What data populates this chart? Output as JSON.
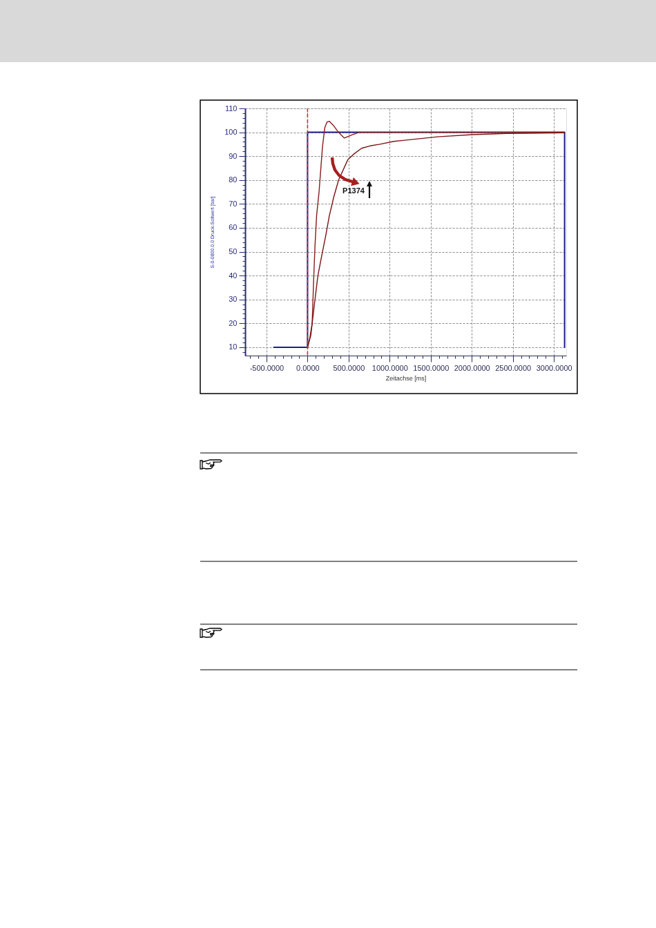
{
  "chart_data": {
    "type": "line",
    "xlabel": "Zeitachse [ms]",
    "ylabel": "S-0-0800.0.0 Druck-Sollwert [bar]",
    "xlim": [
      -760,
      3150
    ],
    "ylim": [
      6.5,
      110
    ],
    "xticks": [
      {
        "value": -700,
        "label": null
      },
      {
        "value": -600,
        "label": null
      },
      {
        "value": -500,
        "label": "-500.0000"
      },
      {
        "value": -400,
        "label": null
      },
      {
        "value": -300,
        "label": null
      },
      {
        "value": -200,
        "label": null
      },
      {
        "value": -100,
        "label": null
      },
      {
        "value": 0,
        "label": "0.0000"
      },
      {
        "value": 100,
        "label": null
      },
      {
        "value": 200,
        "label": null
      },
      {
        "value": 300,
        "label": null
      },
      {
        "value": 400,
        "label": null
      },
      {
        "value": 500,
        "label": "500.0000"
      },
      {
        "value": 600,
        "label": null
      },
      {
        "value": 700,
        "label": null
      },
      {
        "value": 800,
        "label": null
      },
      {
        "value": 900,
        "label": null
      },
      {
        "value": 1000,
        "label": "1000.0000"
      },
      {
        "value": 1100,
        "label": null
      },
      {
        "value": 1200,
        "label": null
      },
      {
        "value": 1300,
        "label": null
      },
      {
        "value": 1400,
        "label": null
      },
      {
        "value": 1500,
        "label": "1500.0000"
      },
      {
        "value": 1600,
        "label": null
      },
      {
        "value": 1700,
        "label": null
      },
      {
        "value": 1800,
        "label": null
      },
      {
        "value": 1900,
        "label": null
      },
      {
        "value": 2000,
        "label": "2000.0000"
      },
      {
        "value": 2100,
        "label": null
      },
      {
        "value": 2200,
        "label": null
      },
      {
        "value": 2300,
        "label": null
      },
      {
        "value": 2400,
        "label": null
      },
      {
        "value": 2500,
        "label": "2500.0000"
      },
      {
        "value": 2600,
        "label": null
      },
      {
        "value": 2700,
        "label": null
      },
      {
        "value": 2800,
        "label": null
      },
      {
        "value": 2900,
        "label": null
      },
      {
        "value": 3000,
        "label": "3000.0000"
      },
      {
        "value": 3100,
        "label": null
      }
    ],
    "yticks": [
      {
        "value": 8,
        "label": null
      },
      10,
      {
        "value": 12,
        "label": null
      },
      {
        "value": 14,
        "label": null
      },
      {
        "value": 16,
        "label": null
      },
      {
        "value": 18,
        "label": null
      },
      20,
      {
        "value": 22,
        "label": null
      },
      {
        "value": 24,
        "label": null
      },
      {
        "value": 26,
        "label": null
      },
      {
        "value": 28,
        "label": null
      },
      30,
      {
        "value": 32,
        "label": null
      },
      {
        "value": 34,
        "label": null
      },
      {
        "value": 36,
        "label": null
      },
      {
        "value": 38,
        "label": null
      },
      40,
      {
        "value": 42,
        "label": null
      },
      {
        "value": 44,
        "label": null
      },
      {
        "value": 46,
        "label": null
      },
      {
        "value": 48,
        "label": null
      },
      50,
      {
        "value": 52,
        "label": null
      },
      {
        "value": 54,
        "label": null
      },
      {
        "value": 56,
        "label": null
      },
      {
        "value": 58,
        "label": null
      },
      60,
      {
        "value": 62,
        "label": null
      },
      {
        "value": 64,
        "label": null
      },
      {
        "value": 66,
        "label": null
      },
      {
        "value": 68,
        "label": null
      },
      70,
      {
        "value": 72,
        "label": null
      },
      {
        "value": 74,
        "label": null
      },
      {
        "value": 76,
        "label": null
      },
      {
        "value": 78,
        "label": null
      },
      80,
      {
        "value": 82,
        "label": null
      },
      {
        "value": 84,
        "label": null
      },
      {
        "value": 86,
        "label": null
      },
      {
        "value": 88,
        "label": null
      },
      90,
      {
        "value": 92,
        "label": null
      },
      {
        "value": 94,
        "label": null
      },
      {
        "value": 96,
        "label": null
      },
      {
        "value": 98,
        "label": null
      },
      100,
      {
        "value": 102,
        "label": null
      },
      {
        "value": 104,
        "label": null
      },
      {
        "value": 106,
        "label": null
      },
      {
        "value": 108,
        "label": null
      },
      110
    ],
    "grid": true,
    "line_style": "solid",
    "series": [
      {
        "color": "#1c1c8c",
        "x": [
          -410,
          0,
          0,
          3130,
          3130
        ],
        "values": [
          10,
          10,
          100,
          100,
          10
        ]
      },
      {
        "color": "#8b1c1c",
        "x": [
          0,
          28,
          56,
          74,
          90,
          110,
          140,
          182,
          210,
          237,
          266,
          321,
          377,
          448,
          545,
          630,
          1000,
          1500,
          2000,
          2500,
          3130
        ],
        "values": [
          10,
          14,
          20,
          38,
          52,
          65,
          75,
          94,
          102,
          104.3,
          104.6,
          102.6,
          100,
          97.6,
          99,
          100,
          100,
          100,
          100,
          100,
          100
        ]
      },
      {
        "color": "#7a1414",
        "x": [
          0,
          40,
          80,
          126,
          182,
          223,
          265,
          320,
          378,
          490,
          560,
          658,
          760,
          882,
          1050,
          1162,
          1582,
          2003,
          2422,
          3123
        ],
        "values": [
          10,
          15,
          27,
          40,
          50,
          57,
          65,
          73,
          80,
          88.5,
          90.8,
          93.3,
          94.3,
          95,
          96.2,
          96.6,
          98.1,
          99,
          99.5,
          99.8
        ]
      }
    ],
    "ref_lines": [
      {
        "axis": "x",
        "value": 0,
        "color": "#e8262b",
        "line_style": "dashed"
      }
    ],
    "annotations": [
      "P1374"
    ]
  }
}
